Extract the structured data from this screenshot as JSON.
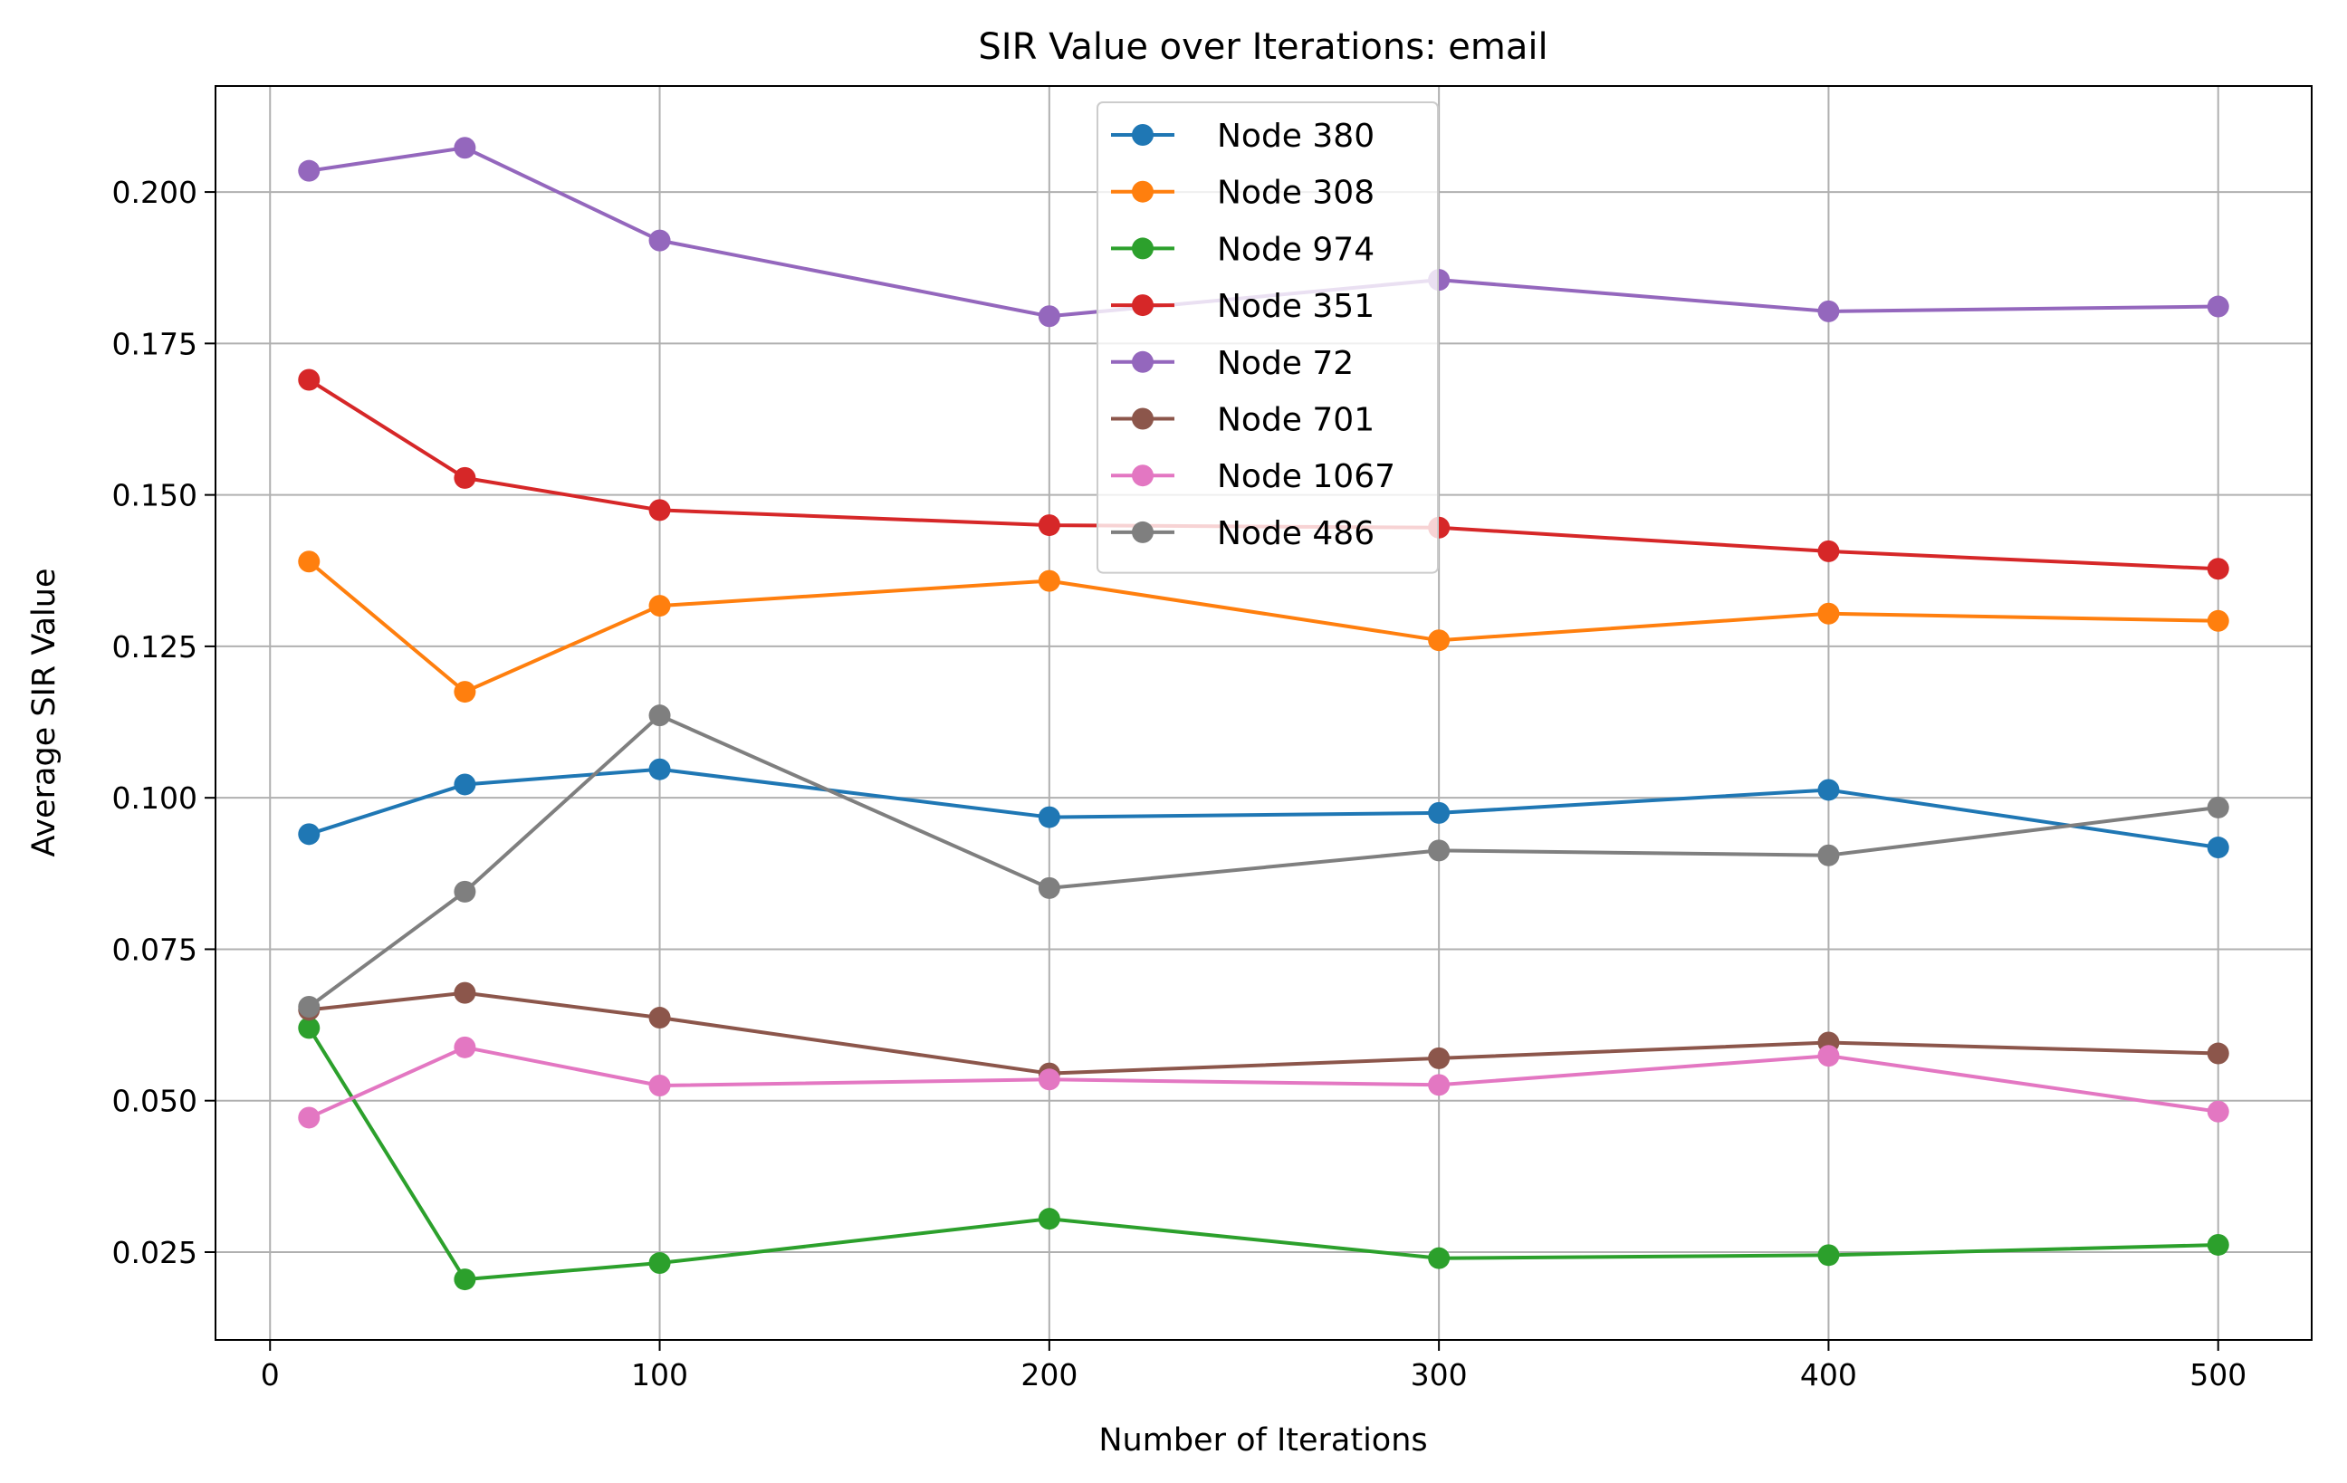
{
  "chart_data": {
    "type": "line",
    "title": "SIR Value over Iterations: email",
    "xlabel": "Number of Iterations",
    "ylabel": "Average SIR Value",
    "x": [
      10,
      50,
      100,
      200,
      300,
      400,
      500
    ],
    "xlim": [
      -14,
      524
    ],
    "ylim": [
      0.0105,
      0.2175
    ],
    "xticks": [
      0,
      100,
      200,
      300,
      400,
      500
    ],
    "yticks": [
      0.025,
      0.05,
      0.075,
      0.1,
      0.125,
      0.15,
      0.175,
      0.2
    ],
    "ytick_labels": [
      "0.025",
      "0.050",
      "0.075",
      "0.100",
      "0.125",
      "0.150",
      "0.175",
      "0.200"
    ],
    "xtick_labels": [
      "0",
      "100",
      "200",
      "300",
      "400",
      "500"
    ],
    "grid": true,
    "legend_position": "top-center",
    "series": [
      {
        "name": "Node 380",
        "color": "#1f77b4",
        "values": [
          0.094,
          0.1022,
          0.1047,
          0.0968,
          0.0975,
          0.1013,
          0.0918
        ]
      },
      {
        "name": "Node 308",
        "color": "#ff7f0e",
        "values": [
          0.139,
          0.1175,
          0.1317,
          0.1358,
          0.126,
          0.1304,
          0.1292
        ]
      },
      {
        "name": "Node 974",
        "color": "#2ca02c",
        "values": [
          0.062,
          0.0205,
          0.0232,
          0.0305,
          0.024,
          0.0245,
          0.0262
        ]
      },
      {
        "name": "Node 351",
        "color": "#d62728",
        "values": [
          0.169,
          0.1528,
          0.1475,
          0.145,
          0.1446,
          0.1407,
          0.1378
        ]
      },
      {
        "name": "Node 72",
        "color": "#9467bd",
        "values": [
          0.2035,
          0.2073,
          0.192,
          0.1795,
          0.1855,
          0.1803,
          0.1811
        ]
      },
      {
        "name": "Node 701",
        "color": "#8c564b",
        "values": [
          0.065,
          0.0678,
          0.0637,
          0.0545,
          0.057,
          0.0596,
          0.0578
        ]
      },
      {
        "name": "Node 1067",
        "color": "#e377c2",
        "values": [
          0.0472,
          0.0588,
          0.0525,
          0.0535,
          0.0526,
          0.0574,
          0.0482
        ]
      },
      {
        "name": "Node 486",
        "color": "#7f7f7f",
        "values": [
          0.0655,
          0.0845,
          0.1136,
          0.0851,
          0.0913,
          0.0905,
          0.0984
        ]
      }
    ]
  }
}
